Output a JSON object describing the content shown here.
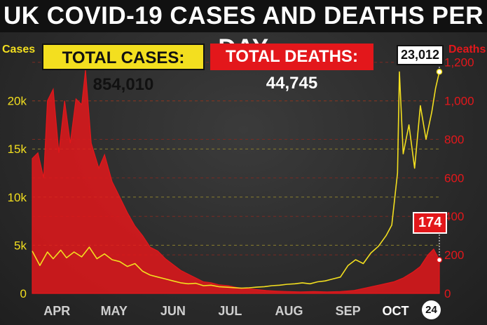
{
  "title": "UK COVID-19 CASES AND DEATHS PER DAY",
  "totals": {
    "cases_label": "TOTAL CASES:  854,010",
    "deaths_label": "TOTAL DEATHS: 44,745"
  },
  "axis_titles": {
    "cases": "Cases",
    "deaths": "Deaths"
  },
  "callouts": {
    "cases_latest": "23,012",
    "deaths_latest": "174",
    "latest_day": "24"
  },
  "colors": {
    "cases": "#f3df1f",
    "deaths": "#e3171b",
    "grid": "#8a7f2e"
  },
  "chart_data": {
    "type": "line",
    "title": "UK COVID-19 CASES AND DEATHS PER DAY",
    "x_range": [
      "2020-03-24",
      "2020-10-24"
    ],
    "month_labels": [
      {
        "label": "APR",
        "date": "2020-04-06"
      },
      {
        "label": "MAY",
        "date": "2020-05-06"
      },
      {
        "label": "JUN",
        "date": "2020-06-06"
      },
      {
        "label": "JUL",
        "date": "2020-07-06"
      },
      {
        "label": "AUG",
        "date": "2020-08-06"
      },
      {
        "label": "SEP",
        "date": "2020-09-06"
      },
      {
        "label": "OCT",
        "date": "2020-10-01"
      }
    ],
    "y_left": {
      "label": "Cases",
      "range": [
        0,
        25000
      ],
      "ticks": [
        0,
        5000,
        10000,
        15000,
        20000
      ],
      "tick_labels": [
        "0",
        "5k",
        "10k",
        "15k",
        "20k"
      ]
    },
    "y_right": {
      "label": "Deaths",
      "range": [
        0,
        1250
      ],
      "ticks": [
        0,
        200,
        400,
        600,
        800,
        1000,
        1200
      ],
      "tick_labels": [
        "0",
        "200",
        "400",
        "600",
        "800",
        "1,000",
        "1,200"
      ]
    },
    "grid": true,
    "series": [
      {
        "name": "Cases",
        "axis": "left",
        "style": "line",
        "points": [
          [
            "2020-03-24",
            4400
          ],
          [
            "2020-03-28",
            2900
          ],
          [
            "2020-04-01",
            4300
          ],
          [
            "2020-04-04",
            3600
          ],
          [
            "2020-04-08",
            4500
          ],
          [
            "2020-04-11",
            3700
          ],
          [
            "2020-04-15",
            4300
          ],
          [
            "2020-04-19",
            3800
          ],
          [
            "2020-04-23",
            4800
          ],
          [
            "2020-04-27",
            3600
          ],
          [
            "2020-05-01",
            4100
          ],
          [
            "2020-05-05",
            3500
          ],
          [
            "2020-05-09",
            3300
          ],
          [
            "2020-05-13",
            2800
          ],
          [
            "2020-05-17",
            3100
          ],
          [
            "2020-05-21",
            2300
          ],
          [
            "2020-05-25",
            1900
          ],
          [
            "2020-05-29",
            1700
          ],
          [
            "2020-06-02",
            1500
          ],
          [
            "2020-06-06",
            1300
          ],
          [
            "2020-06-10",
            1100
          ],
          [
            "2020-06-14",
            1000
          ],
          [
            "2020-06-18",
            1050
          ],
          [
            "2020-06-22",
            800
          ],
          [
            "2020-06-26",
            850
          ],
          [
            "2020-06-30",
            700
          ],
          [
            "2020-07-04",
            650
          ],
          [
            "2020-07-08",
            600
          ],
          [
            "2020-07-12",
            550
          ],
          [
            "2020-07-16",
            580
          ],
          [
            "2020-07-20",
            650
          ],
          [
            "2020-07-24",
            700
          ],
          [
            "2020-07-28",
            800
          ],
          [
            "2020-08-01",
            850
          ],
          [
            "2020-08-05",
            950
          ],
          [
            "2020-08-09",
            1000
          ],
          [
            "2020-08-13",
            1100
          ],
          [
            "2020-08-17",
            1000
          ],
          [
            "2020-08-21",
            1200
          ],
          [
            "2020-08-25",
            1300
          ],
          [
            "2020-08-29",
            1500
          ],
          [
            "2020-09-02",
            1700
          ],
          [
            "2020-09-06",
            2900
          ],
          [
            "2020-09-10",
            3500
          ],
          [
            "2020-09-14",
            3100
          ],
          [
            "2020-09-18",
            4200
          ],
          [
            "2020-09-22",
            4900
          ],
          [
            "2020-09-26",
            6000
          ],
          [
            "2020-09-29",
            7100
          ],
          [
            "2020-10-02",
            12500
          ],
          [
            "2020-10-03",
            23000
          ],
          [
            "2020-10-05",
            14500
          ],
          [
            "2020-10-08",
            17500
          ],
          [
            "2020-10-11",
            13000
          ],
          [
            "2020-10-14",
            19500
          ],
          [
            "2020-10-17",
            16000
          ],
          [
            "2020-10-20",
            18800
          ],
          [
            "2020-10-22",
            21300
          ],
          [
            "2020-10-24",
            23012
          ]
        ]
      },
      {
        "name": "Deaths",
        "axis": "right",
        "style": "area",
        "points": [
          [
            "2020-03-24",
            700
          ],
          [
            "2020-03-27",
            730
          ],
          [
            "2020-03-30",
            600
          ],
          [
            "2020-04-01",
            1000
          ],
          [
            "2020-04-04",
            1060
          ],
          [
            "2020-04-07",
            730
          ],
          [
            "2020-04-10",
            1000
          ],
          [
            "2020-04-13",
            780
          ],
          [
            "2020-04-16",
            1010
          ],
          [
            "2020-04-19",
            980
          ],
          [
            "2020-04-21",
            1160
          ],
          [
            "2020-04-24",
            780
          ],
          [
            "2020-04-28",
            650
          ],
          [
            "2020-05-01",
            720
          ],
          [
            "2020-05-05",
            580
          ],
          [
            "2020-05-09",
            500
          ],
          [
            "2020-05-13",
            420
          ],
          [
            "2020-05-17",
            350
          ],
          [
            "2020-05-21",
            300
          ],
          [
            "2020-05-25",
            240
          ],
          [
            "2020-05-29",
            220
          ],
          [
            "2020-06-02",
            180
          ],
          [
            "2020-06-06",
            150
          ],
          [
            "2020-06-10",
            120
          ],
          [
            "2020-06-14",
            100
          ],
          [
            "2020-06-18",
            80
          ],
          [
            "2020-06-22",
            60
          ],
          [
            "2020-06-26",
            55
          ],
          [
            "2020-06-30",
            45
          ],
          [
            "2020-07-05",
            40
          ],
          [
            "2020-07-10",
            30
          ],
          [
            "2020-07-15",
            25
          ],
          [
            "2020-07-20",
            20
          ],
          [
            "2020-07-25",
            15
          ],
          [
            "2020-07-30",
            12
          ],
          [
            "2020-08-05",
            10
          ],
          [
            "2020-08-12",
            8
          ],
          [
            "2020-08-19",
            10
          ],
          [
            "2020-08-26",
            8
          ],
          [
            "2020-09-02",
            10
          ],
          [
            "2020-09-09",
            15
          ],
          [
            "2020-09-16",
            30
          ],
          [
            "2020-09-23",
            45
          ],
          [
            "2020-09-30",
            60
          ],
          [
            "2020-10-05",
            80
          ],
          [
            "2020-10-10",
            110
          ],
          [
            "2020-10-14",
            140
          ],
          [
            "2020-10-18",
            200
          ],
          [
            "2020-10-21",
            230
          ],
          [
            "2020-10-24",
            174
          ]
        ]
      }
    ]
  }
}
